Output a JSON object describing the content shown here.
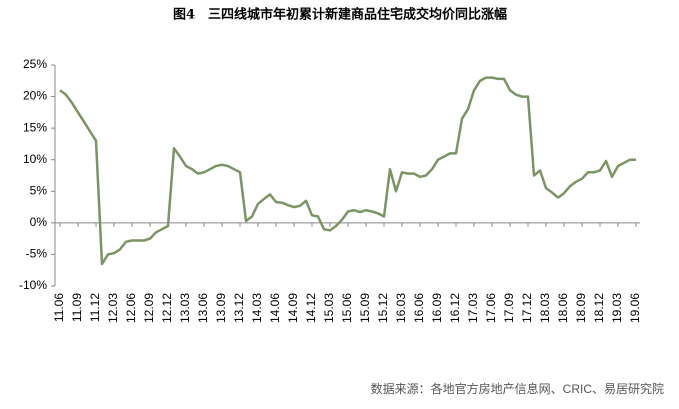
{
  "chart_data": {
    "type": "line",
    "title": "图4　三四线城市年初累计新建商品住宅成交均价同比涨幅",
    "source": "数据来源：各地官方房地产信息网、CRIC、易居研究院",
    "categories": [
      "11.06",
      null,
      null,
      "11.09",
      null,
      null,
      "11.12",
      null,
      null,
      "12.03",
      null,
      null,
      "12.06",
      null,
      null,
      "12.09",
      null,
      null,
      "12.12",
      null,
      null,
      "13.03",
      null,
      null,
      "13.06",
      null,
      null,
      "13.09",
      null,
      null,
      "13.12",
      null,
      null,
      "14.03",
      null,
      null,
      "14.06",
      null,
      null,
      "14.09",
      null,
      null,
      "14.12",
      null,
      null,
      "15.03",
      null,
      null,
      "15.06",
      null,
      null,
      "15.09",
      null,
      null,
      "15.12",
      null,
      null,
      "16.03",
      null,
      null,
      "16.06",
      null,
      null,
      "16.09",
      null,
      null,
      "16.12",
      null,
      null,
      "17.03",
      null,
      null,
      "17.06",
      null,
      null,
      "17.09",
      null,
      null,
      "17.12",
      null,
      null,
      "18.03",
      null,
      null,
      "18.06",
      null,
      null,
      "18.09",
      null,
      null,
      "18.12",
      null,
      null,
      "19.03",
      null,
      null,
      "19.06"
    ],
    "values": [
      21,
      20.3,
      19,
      17.5,
      16,
      14.5,
      13,
      -6.5,
      -5,
      -4.8,
      -4.2,
      -3,
      -2.8,
      -2.8,
      -2.8,
      -2.5,
      -1.5,
      -1,
      -0.5,
      11.8,
      10.5,
      9,
      8.5,
      7.8,
      8,
      8.5,
      9,
      9.2,
      9,
      8.5,
      8,
      0.3,
      1,
      3,
      3.8,
      4.5,
      3.3,
      3.2,
      2.8,
      2.5,
      2.7,
      3.5,
      1.2,
      1,
      -1,
      -1.2,
      -0.5,
      0.5,
      1.8,
      2,
      1.7,
      2,
      1.8,
      1.5,
      1,
      8.5,
      5,
      8,
      7.8,
      7.8,
      7.3,
      7.5,
      8.5,
      10,
      10.5,
      11,
      11,
      16.5,
      18,
      21,
      22.5,
      23,
      23,
      22.8,
      22.8,
      21,
      20.3,
      20,
      20,
      7.5,
      8.3,
      5.5,
      4.8,
      4,
      4.7,
      5.8,
      6.5,
      7,
      8,
      8,
      8.3,
      9.8,
      7.3,
      9,
      9.5,
      10,
      10
    ],
    "color": "#7b9464",
    "ylim": [
      -10,
      25
    ],
    "yticks": [
      {
        "value": -10,
        "label": "-10%"
      },
      {
        "value": -5,
        "label": "-5%"
      },
      {
        "value": 0,
        "label": "0%"
      },
      {
        "value": 5,
        "label": "5%"
      },
      {
        "value": 10,
        "label": "10%"
      },
      {
        "value": 15,
        "label": "15%"
      },
      {
        "value": 20,
        "label": "20%"
      },
      {
        "value": 25,
        "label": "25%"
      }
    ],
    "grid": false
  }
}
